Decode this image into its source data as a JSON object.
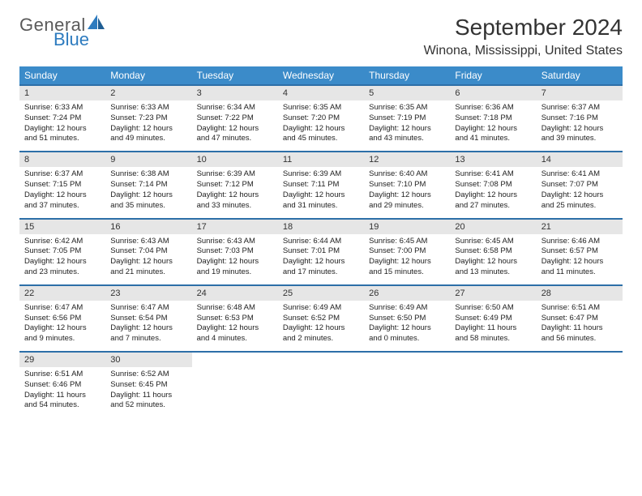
{
  "logo": {
    "text_general": "General",
    "text_blue": "Blue"
  },
  "title": "September 2024",
  "location": "Winona, Mississippi, United States",
  "colors": {
    "header_bg": "#3b8bc9",
    "header_text": "#ffffff",
    "row_border": "#2d6fa8",
    "daynum_bg": "#e6e6e6",
    "logo_gray": "#5a5a5a",
    "logo_blue": "#2d7bbf",
    "background": "#ffffff",
    "text": "#222222"
  },
  "day_headers": [
    "Sunday",
    "Monday",
    "Tuesday",
    "Wednesday",
    "Thursday",
    "Friday",
    "Saturday"
  ],
  "weeks": [
    [
      {
        "num": "1",
        "sunrise": "Sunrise: 6:33 AM",
        "sunset": "Sunset: 7:24 PM",
        "daylight1": "Daylight: 12 hours",
        "daylight2": "and 51 minutes."
      },
      {
        "num": "2",
        "sunrise": "Sunrise: 6:33 AM",
        "sunset": "Sunset: 7:23 PM",
        "daylight1": "Daylight: 12 hours",
        "daylight2": "and 49 minutes."
      },
      {
        "num": "3",
        "sunrise": "Sunrise: 6:34 AM",
        "sunset": "Sunset: 7:22 PM",
        "daylight1": "Daylight: 12 hours",
        "daylight2": "and 47 minutes."
      },
      {
        "num": "4",
        "sunrise": "Sunrise: 6:35 AM",
        "sunset": "Sunset: 7:20 PM",
        "daylight1": "Daylight: 12 hours",
        "daylight2": "and 45 minutes."
      },
      {
        "num": "5",
        "sunrise": "Sunrise: 6:35 AM",
        "sunset": "Sunset: 7:19 PM",
        "daylight1": "Daylight: 12 hours",
        "daylight2": "and 43 minutes."
      },
      {
        "num": "6",
        "sunrise": "Sunrise: 6:36 AM",
        "sunset": "Sunset: 7:18 PM",
        "daylight1": "Daylight: 12 hours",
        "daylight2": "and 41 minutes."
      },
      {
        "num": "7",
        "sunrise": "Sunrise: 6:37 AM",
        "sunset": "Sunset: 7:16 PM",
        "daylight1": "Daylight: 12 hours",
        "daylight2": "and 39 minutes."
      }
    ],
    [
      {
        "num": "8",
        "sunrise": "Sunrise: 6:37 AM",
        "sunset": "Sunset: 7:15 PM",
        "daylight1": "Daylight: 12 hours",
        "daylight2": "and 37 minutes."
      },
      {
        "num": "9",
        "sunrise": "Sunrise: 6:38 AM",
        "sunset": "Sunset: 7:14 PM",
        "daylight1": "Daylight: 12 hours",
        "daylight2": "and 35 minutes."
      },
      {
        "num": "10",
        "sunrise": "Sunrise: 6:39 AM",
        "sunset": "Sunset: 7:12 PM",
        "daylight1": "Daylight: 12 hours",
        "daylight2": "and 33 minutes."
      },
      {
        "num": "11",
        "sunrise": "Sunrise: 6:39 AM",
        "sunset": "Sunset: 7:11 PM",
        "daylight1": "Daylight: 12 hours",
        "daylight2": "and 31 minutes."
      },
      {
        "num": "12",
        "sunrise": "Sunrise: 6:40 AM",
        "sunset": "Sunset: 7:10 PM",
        "daylight1": "Daylight: 12 hours",
        "daylight2": "and 29 minutes."
      },
      {
        "num": "13",
        "sunrise": "Sunrise: 6:41 AM",
        "sunset": "Sunset: 7:08 PM",
        "daylight1": "Daylight: 12 hours",
        "daylight2": "and 27 minutes."
      },
      {
        "num": "14",
        "sunrise": "Sunrise: 6:41 AM",
        "sunset": "Sunset: 7:07 PM",
        "daylight1": "Daylight: 12 hours",
        "daylight2": "and 25 minutes."
      }
    ],
    [
      {
        "num": "15",
        "sunrise": "Sunrise: 6:42 AM",
        "sunset": "Sunset: 7:05 PM",
        "daylight1": "Daylight: 12 hours",
        "daylight2": "and 23 minutes."
      },
      {
        "num": "16",
        "sunrise": "Sunrise: 6:43 AM",
        "sunset": "Sunset: 7:04 PM",
        "daylight1": "Daylight: 12 hours",
        "daylight2": "and 21 minutes."
      },
      {
        "num": "17",
        "sunrise": "Sunrise: 6:43 AM",
        "sunset": "Sunset: 7:03 PM",
        "daylight1": "Daylight: 12 hours",
        "daylight2": "and 19 minutes."
      },
      {
        "num": "18",
        "sunrise": "Sunrise: 6:44 AM",
        "sunset": "Sunset: 7:01 PM",
        "daylight1": "Daylight: 12 hours",
        "daylight2": "and 17 minutes."
      },
      {
        "num": "19",
        "sunrise": "Sunrise: 6:45 AM",
        "sunset": "Sunset: 7:00 PM",
        "daylight1": "Daylight: 12 hours",
        "daylight2": "and 15 minutes."
      },
      {
        "num": "20",
        "sunrise": "Sunrise: 6:45 AM",
        "sunset": "Sunset: 6:58 PM",
        "daylight1": "Daylight: 12 hours",
        "daylight2": "and 13 minutes."
      },
      {
        "num": "21",
        "sunrise": "Sunrise: 6:46 AM",
        "sunset": "Sunset: 6:57 PM",
        "daylight1": "Daylight: 12 hours",
        "daylight2": "and 11 minutes."
      }
    ],
    [
      {
        "num": "22",
        "sunrise": "Sunrise: 6:47 AM",
        "sunset": "Sunset: 6:56 PM",
        "daylight1": "Daylight: 12 hours",
        "daylight2": "and 9 minutes."
      },
      {
        "num": "23",
        "sunrise": "Sunrise: 6:47 AM",
        "sunset": "Sunset: 6:54 PM",
        "daylight1": "Daylight: 12 hours",
        "daylight2": "and 7 minutes."
      },
      {
        "num": "24",
        "sunrise": "Sunrise: 6:48 AM",
        "sunset": "Sunset: 6:53 PM",
        "daylight1": "Daylight: 12 hours",
        "daylight2": "and 4 minutes."
      },
      {
        "num": "25",
        "sunrise": "Sunrise: 6:49 AM",
        "sunset": "Sunset: 6:52 PM",
        "daylight1": "Daylight: 12 hours",
        "daylight2": "and 2 minutes."
      },
      {
        "num": "26",
        "sunrise": "Sunrise: 6:49 AM",
        "sunset": "Sunset: 6:50 PM",
        "daylight1": "Daylight: 12 hours",
        "daylight2": "and 0 minutes."
      },
      {
        "num": "27",
        "sunrise": "Sunrise: 6:50 AM",
        "sunset": "Sunset: 6:49 PM",
        "daylight1": "Daylight: 11 hours",
        "daylight2": "and 58 minutes."
      },
      {
        "num": "28",
        "sunrise": "Sunrise: 6:51 AM",
        "sunset": "Sunset: 6:47 PM",
        "daylight1": "Daylight: 11 hours",
        "daylight2": "and 56 minutes."
      }
    ],
    [
      {
        "num": "29",
        "sunrise": "Sunrise: 6:51 AM",
        "sunset": "Sunset: 6:46 PM",
        "daylight1": "Daylight: 11 hours",
        "daylight2": "and 54 minutes."
      },
      {
        "num": "30",
        "sunrise": "Sunrise: 6:52 AM",
        "sunset": "Sunset: 6:45 PM",
        "daylight1": "Daylight: 11 hours",
        "daylight2": "and 52 minutes."
      },
      null,
      null,
      null,
      null,
      null
    ]
  ]
}
